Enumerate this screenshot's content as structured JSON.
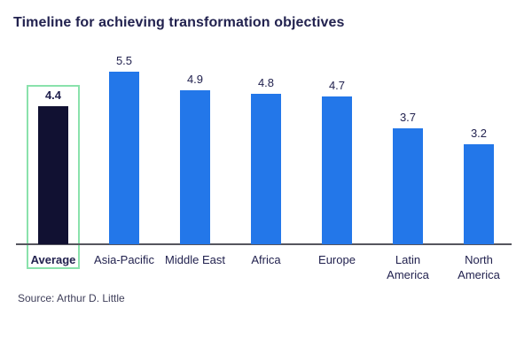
{
  "header": {
    "title": "Timeline for achieving transformation objectives"
  },
  "footer": {
    "source": "Source: Arthur D. Little"
  },
  "colors": {
    "bar_default": "#2377e9",
    "bar_highlight": "#111132",
    "highlight_outline": "#8ae2ac",
    "text": "#22224f",
    "axis": "#55555e",
    "background": "#ffffff"
  },
  "chart_data": {
    "type": "bar",
    "title": "Timeline for achieving transformation objectives",
    "categories": [
      "Average",
      "Asia-Pacific",
      "Middle East",
      "Africa",
      "Europe",
      "Latin America",
      "North America"
    ],
    "values": [
      4.4,
      5.5,
      4.9,
      4.8,
      4.7,
      3.7,
      3.2
    ],
    "value_labels": [
      "4.4",
      "5.5",
      "4.9",
      "4.8",
      "4.7",
      "3.7",
      "3.2"
    ],
    "label_lines": [
      [
        "Average"
      ],
      [
        "Asia-Pacific"
      ],
      [
        "Middle East"
      ],
      [
        "Africa"
      ],
      [
        "Europe"
      ],
      [
        "Latin",
        "America"
      ],
      [
        "North",
        "America"
      ]
    ],
    "xlabel": "",
    "ylabel": "",
    "ylim": [
      0,
      5.5
    ],
    "grid": false,
    "legend": null,
    "highlighted_category": "Average",
    "highlighted_index": 0,
    "source": "Source: Arthur D. Little"
  }
}
